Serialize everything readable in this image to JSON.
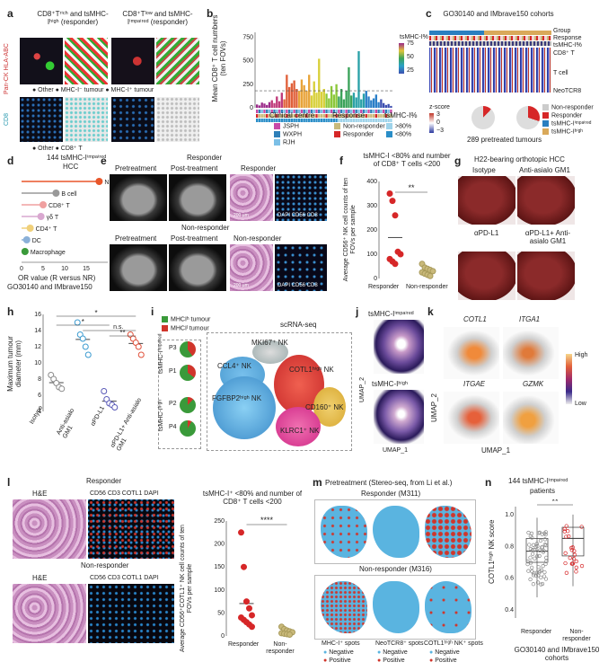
{
  "colors": {
    "responder": "#d62728",
    "nonresponder": "#c9b97a",
    "nk": "#e8562a",
    "blue_pie": "#3a6fb0",
    "green_pie": "#3a9a3a",
    "red_pie": "#d0352b"
  },
  "a": {
    "label": "a",
    "col1": "CD8⁺Tʳⁱᶜʰ and tsMHC-Iʰⁱᵍʰ (responder)",
    "col2": "CD8⁺Tˡᵒʷ and tsMHC-Iⁱᵐᵖᵃⁱʳᵉᵈ (responder)",
    "side1": "Pan-CK HLA-ABC",
    "side2": "CD8",
    "leg1": "● Other  ● MHC-I⁻ tumour  ● MHC-I⁺ tumour",
    "leg2": "● Other  ● CD8⁺ T"
  },
  "b": {
    "label": "b",
    "ylabel": "Mean CD8⁺ T cell numbers (ten FOVs)",
    "yticks": [
      "0",
      "250",
      "500",
      "750"
    ],
    "cbar_title": "tsMHC-I%",
    "cbar_ticks": [
      "75",
      "50",
      "25"
    ],
    "legend": {
      "centre_title": "Clinical centre",
      "centres": [
        "JSPH",
        "WXPH",
        "RJH"
      ],
      "response_title": "Response",
      "responses": [
        "Non-responder",
        "Responder"
      ],
      "pct_title": "tsMHC-I%",
      "pcts": [
        ">80%",
        "<80%"
      ]
    }
  },
  "c": {
    "label": "c",
    "title": "GO30140 and IMbrave150 cohorts",
    "rows": [
      "Group",
      "Response",
      "tsMHC-I%",
      "CD8⁺ T",
      "T cell",
      "NeoTCR8"
    ],
    "zscore": "z-score",
    "zticks": [
      "3",
      "0",
      "−3"
    ],
    "legend": [
      "Non-responder",
      "Responder",
      "tsMHC-Iⁱᵐᵖᵃⁱʳᵉᵈ",
      "tsMHC-Iʰⁱᵍʰ"
    ],
    "footer": "289 pretreated tumours"
  },
  "d": {
    "label": "d",
    "title1": "144 tsMHC-Iⁱᵐᵖᵃⁱʳᵉᵈ",
    "title2": "HCC",
    "xlabel": "OR value (R versus NR)",
    "xsub": "GO30140 and IMbrave150",
    "xticks": [
      "0",
      "5",
      "10",
      "15"
    ]
  },
  "e": {
    "label": "e",
    "resp": "Responder",
    "nonresp": "Non-responder",
    "pre": "Pretreatment",
    "post": "Post-treatment",
    "ihc_resp": "Responder",
    "ihc_nonresp": "Non-responder",
    "stain": "DAPI CD56 CD8",
    "scale": "200 μm"
  },
  "f": {
    "label": "f",
    "title": "tsMHC-I <80% and number of CD8⁺ T cells <200",
    "ylabel": "Average CD56⁺ NK cell counts of ten FOVs per sample",
    "yticks": [
      "0",
      "100",
      "200",
      "300",
      "400"
    ],
    "sig": "**",
    "xcats": [
      "Responder",
      "Non-responder"
    ]
  },
  "g": {
    "label": "g",
    "title": "H22-bearing orthotopic HCC",
    "panels": [
      "Isotype",
      "Anti-asialo GM1",
      "αPD-L1",
      "αPD-L1+ Anti-asialo GM1"
    ]
  },
  "h": {
    "label": "h",
    "ylabel": "Maximum tumour diameter (mm)",
    "yticks": [
      "4",
      "6",
      "8",
      "10",
      "12",
      "14",
      "16"
    ],
    "sig": [
      "*",
      "*",
      "n.s.",
      "**"
    ],
    "xcats": [
      "Isotype",
      "Anti-asialo GM1",
      "αPD-L1",
      "αPD-L1+ Anti-asialo GM1"
    ]
  },
  "i": {
    "label": "i",
    "title": "scRNA-seq",
    "leg": [
      "MHCIʰ tumour",
      "MHCIˡ tumour"
    ],
    "pies": [
      "P3",
      "P1",
      "P2",
      "P4"
    ],
    "groups": [
      "tsMHC-Iⁱᵐᵖᵃⁱʳᵉᵈ",
      "tsMHC-Iʰⁱᵍʰ"
    ],
    "clusters": [
      "MKI67⁺ NK",
      "CCL4⁺ NK",
      "COTL1ʰⁱᵍʰ NK",
      "FGFBP2ʰⁱᵍʰ NK",
      "CD160⁺ NK",
      "KLRC1⁺ NK"
    ]
  },
  "j": {
    "label": "j",
    "top": "tsMHC-Iⁱᵐᵖᵃⁱʳᵉᵈ",
    "bottom": "tsMHC-Iʰⁱᵍʰ",
    "ylabel": "UMAP_2",
    "xlabel": "UMAP_1"
  },
  "k": {
    "label": "k",
    "genes": [
      "COTL1",
      "ITGA1",
      "ITGAE",
      "GZMK"
    ],
    "high": "High",
    "low": "Low",
    "ylabel": "UMAP_2",
    "xlabel": "UMAP_1"
  },
  "l": {
    "label": "l",
    "resp": "Responder",
    "nonresp": "Non-responder",
    "he": "H&E",
    "stain": "CD56 CD3 COTL1 DAPI",
    "title": "tsMHC-I⁺ <80% and number of CD8⁺ T cells <200",
    "ylabel": "Average CD56⁺COTL1⁺ NK cell counts of ten FOVs per sample",
    "yticks": [
      "0",
      "50",
      "100",
      "150",
      "200",
      "250"
    ],
    "sig": "****",
    "xcats": [
      "Responder",
      "Non-responder"
    ]
  },
  "m": {
    "label": "m",
    "title": "Pretreatment (Stereo-seq, from Li et al.)",
    "resp": "Responder (M311)",
    "nonresp": "Non-responder (M316)",
    "spots": [
      "MHC-I⁺ spots",
      "NeoTCR8⁺ spots",
      "COTL1ʰⁱᵍʰ NK⁺ spots"
    ],
    "neg": "Negative",
    "pos": "Positive"
  },
  "n": {
    "label": "n",
    "title1": "144 tsMHC-Iⁱᵐᵖᵃⁱʳᵉᵈ",
    "title2": "patients",
    "ylabel": "COTL1ʰⁱᵍʰ NK score",
    "yticks": [
      "0.4",
      "0.6",
      "0.8",
      "1.0"
    ],
    "sig": "**",
    "xcats": [
      "Responder",
      "Non-responder"
    ],
    "footer": "GO30140 and IMbrave150 cohorts"
  },
  "chart_data": [
    {
      "type": "bar",
      "panel": "b",
      "ylabel": "Mean CD8⁺ T cell numbers (ten FOVs)",
      "ylim": [
        0,
        800
      ],
      "values": [
        35,
        25,
        55,
        45,
        30,
        60,
        80,
        50,
        120,
        70,
        160,
        90,
        350,
        220,
        260,
        290,
        200,
        180,
        300,
        240,
        180,
        350,
        130,
        280,
        160,
        520,
        170,
        200,
        150,
        100,
        230,
        140,
        250,
        120,
        200,
        90,
        180,
        430,
        130,
        160,
        110,
        600,
        90,
        150,
        180,
        120,
        80,
        100,
        140,
        60,
        90,
        50,
        30,
        40,
        20
      ]
    },
    {
      "type": "scatter",
      "panel": "f",
      "ylim": [
        0,
        400
      ],
      "series": [
        {
          "name": "Responder",
          "values": [
            350,
            320,
            260,
            110,
            100,
            80,
            70,
            60
          ]
        },
        {
          "name": "Non-responder",
          "values": [
            60,
            45,
            40,
            35,
            30,
            25,
            20,
            15,
            10
          ]
        }
      ]
    },
    {
      "type": "scatter",
      "panel": "h",
      "ylim": [
        4,
        16
      ],
      "series": [
        {
          "name": "Isotype",
          "values": [
            8.5,
            8,
            7.5,
            7,
            6.8
          ]
        },
        {
          "name": "Anti-asialo GM1",
          "values": [
            15,
            13.5,
            13,
            12,
            11
          ]
        },
        {
          "name": "αPD-L1",
          "values": [
            6.5,
            5.5,
            5,
            4.8,
            4.5
          ]
        },
        {
          "name": "αPD-L1+ Anti-asialo GM1",
          "values": [
            13.5,
            13,
            12.5,
            12,
            11
          ]
        }
      ]
    },
    {
      "type": "scatter",
      "panel": "l",
      "ylim": [
        0,
        250
      ],
      "series": [
        {
          "name": "Responder",
          "values": [
            225,
            150,
            75,
            60,
            45,
            40,
            35,
            30,
            25,
            20
          ]
        },
        {
          "name": "Non-responder",
          "values": [
            20,
            15,
            12,
            10,
            8,
            6,
            5,
            4,
            3
          ]
        }
      ]
    },
    {
      "type": "bar",
      "panel": "d",
      "orientation": "horizontal",
      "categories": [
        "NK",
        "B cell",
        "CD8⁺ T",
        "γδ T",
        "CD4⁺ T",
        "DC",
        "Macrophage"
      ],
      "values": [
        18,
        8,
        5,
        4.5,
        2,
        1.2,
        0.8
      ]
    }
  ]
}
